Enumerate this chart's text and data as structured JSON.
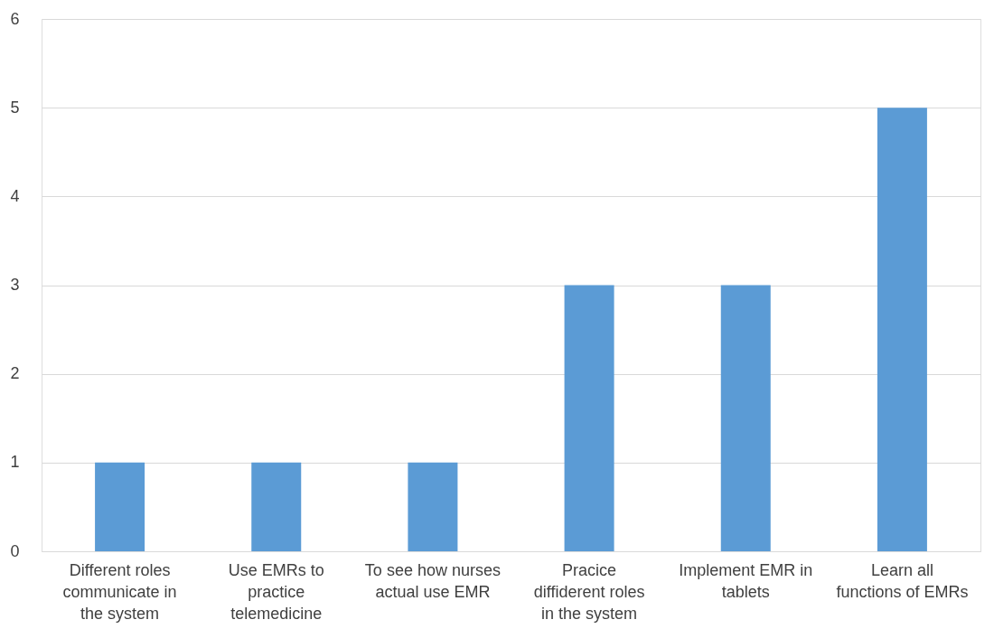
{
  "chart_data": {
    "type": "bar",
    "categories": [
      "Different roles communicate in the system",
      "Use EMRs to practice telemedicine",
      "To see how nurses actual use EMR",
      "Pracice diffiderent roles in the system",
      "Implement EMR in tablets",
      "Learn all functions of EMRs"
    ],
    "values": [
      1,
      1,
      1,
      3,
      3,
      5
    ],
    "color": "#5b9bd5",
    "ylim": [
      0,
      6
    ],
    "yticks": [
      0,
      1,
      2,
      3,
      4,
      5,
      6
    ],
    "grid": "y"
  }
}
